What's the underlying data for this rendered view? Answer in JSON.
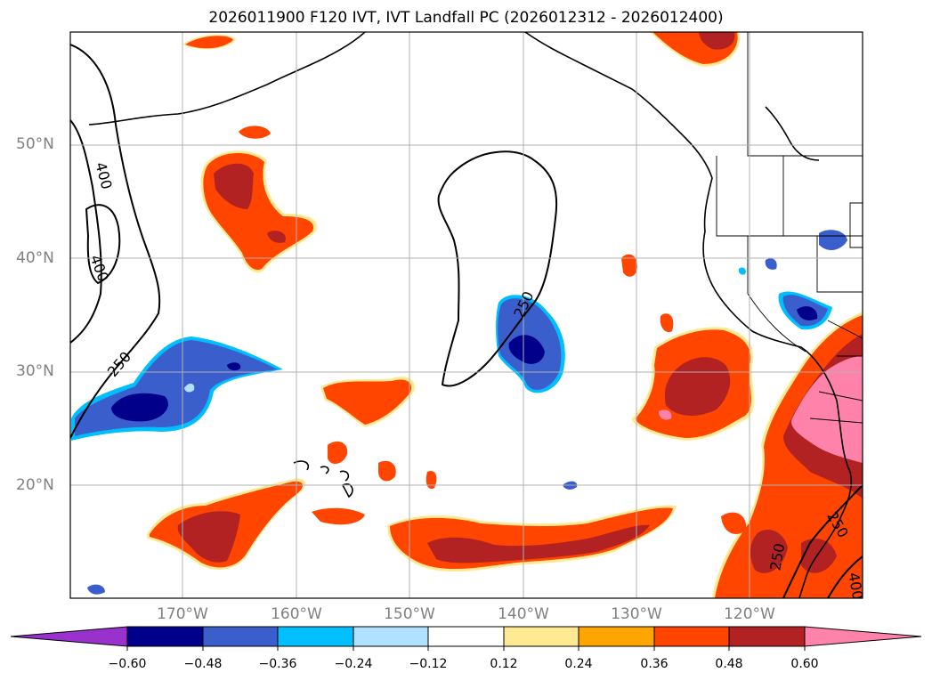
{
  "title": "2026011900 F120 IVT, IVT Landfall PC (2026012312 - 2026012400)",
  "lat_labels": [
    "50°N",
    "40°N",
    "30°N",
    "20°N"
  ],
  "lon_labels": [
    "170°W",
    "160°W",
    "150°W",
    "140°W",
    "130°W",
    "120°W"
  ],
  "contour_labels": [
    "400",
    "400",
    "250",
    "250",
    "250",
    "250",
    "400"
  ],
  "colorbar": {
    "ticks": [
      "−0.60",
      "−0.48",
      "−0.36",
      "−0.24",
      "−0.12",
      "0.12",
      "0.24",
      "0.36",
      "0.48",
      "0.60"
    ],
    "colors": [
      "#9932cc",
      "#00008b",
      "#3a5fcd",
      "#00bfff",
      "#b0e2ff",
      "#ffffff",
      "#ffe992",
      "#ffa500",
      "#ff4500",
      "#b22222",
      "#ff82ab"
    ]
  },
  "colors": {
    "neg_strong": "#00008b",
    "neg_mid": "#3a5fcd",
    "neg_weak": "#00bfff",
    "pos_weak": "#ffe992",
    "pos_orange": "#ffa500",
    "pos_red": "#ff4500",
    "pos_dark": "#b22222",
    "pos_pink": "#ff82ab",
    "grid": "#b0b0b0",
    "axis_label": "#808080"
  }
}
